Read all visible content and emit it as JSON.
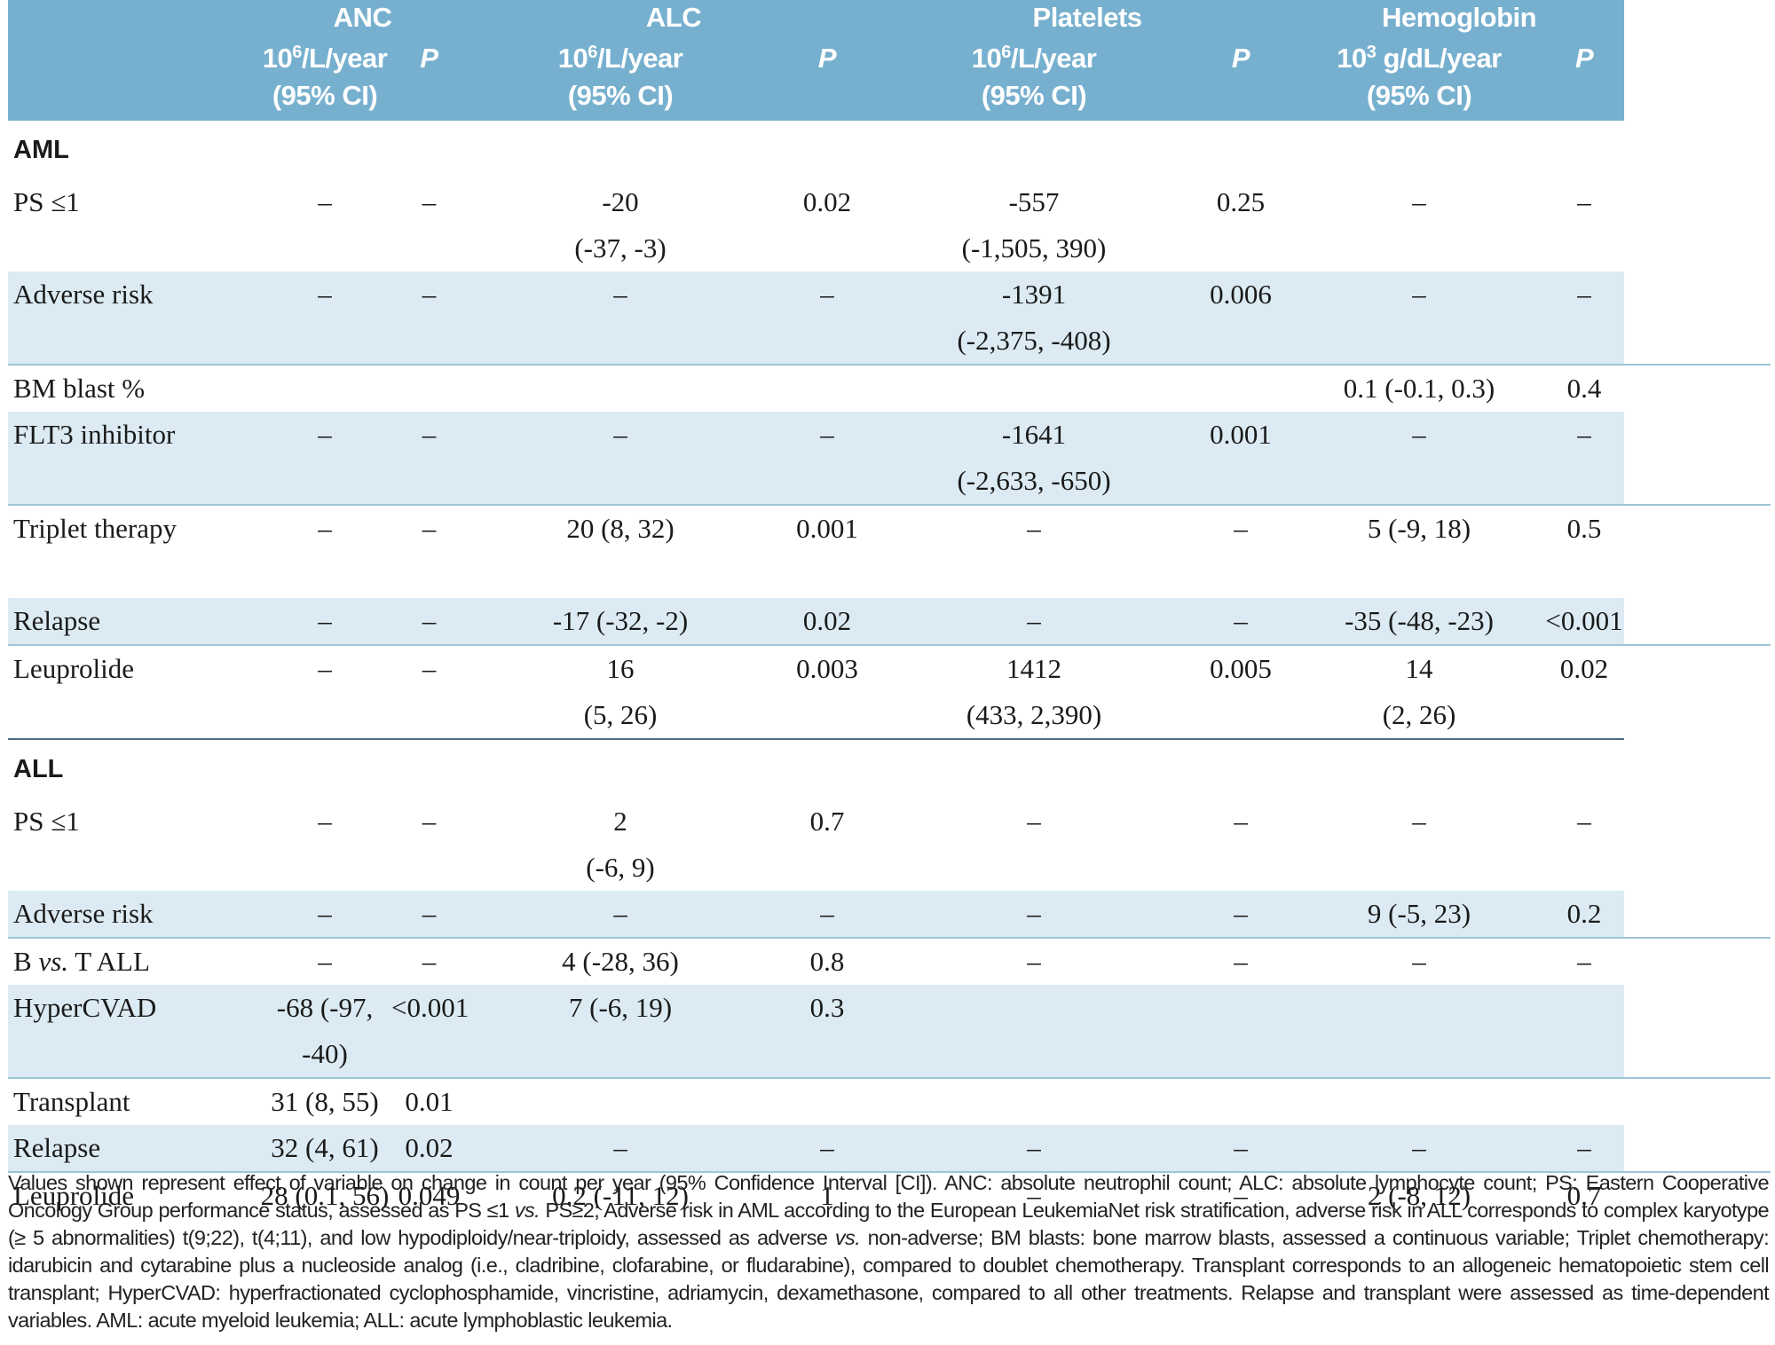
{
  "header": {
    "groups": [
      "ANC",
      "ALC",
      "Platelets",
      "Hemoglobin"
    ],
    "unit_main_a": "10",
    "unit_exp_6": "6",
    "unit_rest_a": "/L/year",
    "unit_exp_3": "3",
    "unit_rest_b": " g/dL/year",
    "ci_label": "(95% CI)",
    "p_label": "P"
  },
  "sections": [
    {
      "title": "AML",
      "rows": [
        {
          "label": "PS ≤1",
          "cells": [
            [
              "–",
              ""
            ],
            [
              "–",
              ""
            ],
            [
              "-20",
              "(-37, -3)"
            ],
            [
              "0.02",
              ""
            ],
            [
              "-557",
              "(-1,505, 390)"
            ],
            [
              "0.25",
              ""
            ],
            [
              "–",
              ""
            ],
            [
              "–",
              ""
            ]
          ]
        },
        {
          "label": "Adverse risk",
          "cells": [
            [
              "–",
              ""
            ],
            [
              "–",
              ""
            ],
            [
              "–",
              ""
            ],
            [
              "–",
              ""
            ],
            [
              "-1391",
              "(-2,375, -408)"
            ],
            [
              "0.006",
              ""
            ],
            [
              "–",
              ""
            ],
            [
              "–",
              ""
            ]
          ]
        },
        {
          "label": "BM blast %",
          "cells": [
            [
              "",
              ""
            ],
            [
              "",
              ""
            ],
            [
              "",
              ""
            ],
            [
              "",
              ""
            ],
            [
              "",
              ""
            ],
            [
              "",
              ""
            ],
            [
              "0.1 (-0.1, 0.3)",
              ""
            ],
            [
              "0.4",
              ""
            ]
          ]
        },
        {
          "label": "FLT3 inhibitor",
          "cells": [
            [
              "–",
              ""
            ],
            [
              "–",
              ""
            ],
            [
              "–",
              ""
            ],
            [
              "–",
              ""
            ],
            [
              "-1641",
              "(-2,633, -650)"
            ],
            [
              "0.001",
              ""
            ],
            [
              "–",
              ""
            ],
            [
              "–",
              ""
            ]
          ]
        },
        {
          "label": "Triplet therapy",
          "cells": [
            [
              "–",
              ""
            ],
            [
              "–",
              ""
            ],
            [
              "20 (8, 32)",
              ""
            ],
            [
              "0.001",
              ""
            ],
            [
              "–",
              ""
            ],
            [
              "–",
              ""
            ],
            [
              "5 (-9, 18)",
              ""
            ],
            [
              "0.5",
              ""
            ]
          ]
        },
        {
          "label": "Relapse",
          "cells": [
            [
              "–",
              ""
            ],
            [
              "–",
              ""
            ],
            [
              "-17 (-32, -2)",
              ""
            ],
            [
              "0.02",
              ""
            ],
            [
              "–",
              ""
            ],
            [
              "–",
              ""
            ],
            [
              "-35 (-48, -23)",
              ""
            ],
            [
              "<0.001",
              ""
            ]
          ]
        },
        {
          "label": "Leuprolide",
          "cells": [
            [
              "–",
              ""
            ],
            [
              "–",
              ""
            ],
            [
              "16",
              "(5, 26)"
            ],
            [
              "0.003",
              ""
            ],
            [
              "1412",
              "(433, 2,390)"
            ],
            [
              "0.005",
              ""
            ],
            [
              "14",
              "(2, 26)"
            ],
            [
              "0.02",
              ""
            ]
          ]
        }
      ]
    },
    {
      "title": "ALL",
      "rows": [
        {
          "label": "PS ≤1",
          "cells": [
            [
              "–",
              ""
            ],
            [
              "–",
              ""
            ],
            [
              "2",
              "(-6, 9)"
            ],
            [
              "0.7",
              ""
            ],
            [
              "–",
              ""
            ],
            [
              "–",
              ""
            ],
            [
              "–",
              ""
            ],
            [
              "–",
              ""
            ]
          ]
        },
        {
          "label": "Adverse risk",
          "cells": [
            [
              "–",
              ""
            ],
            [
              "–",
              ""
            ],
            [
              "–",
              ""
            ],
            [
              "–",
              ""
            ],
            [
              "–",
              ""
            ],
            [
              "–",
              ""
            ],
            [
              "9 (-5, 23)",
              ""
            ],
            [
              "0.2",
              ""
            ]
          ]
        },
        {
          "label_a": "B ",
          "label_em": "vs.",
          "label_b": " T ALL",
          "cells": [
            [
              "–",
              ""
            ],
            [
              "–",
              ""
            ],
            [
              "4 (-28, 36)",
              ""
            ],
            [
              "0.8",
              ""
            ],
            [
              "–",
              ""
            ],
            [
              "–",
              ""
            ],
            [
              "–",
              ""
            ],
            [
              "–",
              ""
            ]
          ]
        },
        {
          "label": "HyperCVAD",
          "cells": [
            [
              "-68 (-97, -40)",
              ""
            ],
            [
              "<0.001",
              ""
            ],
            [
              "7 (-6, 19)",
              ""
            ],
            [
              "0.3",
              ""
            ],
            [
              "",
              ""
            ],
            [
              "",
              ""
            ],
            [
              "",
              ""
            ],
            [
              "",
              ""
            ]
          ]
        },
        {
          "label": "Transplant",
          "cells": [
            [
              "31 (8, 55)",
              ""
            ],
            [
              "0.01",
              ""
            ],
            [
              "",
              ""
            ],
            [
              "",
              ""
            ],
            [
              "",
              ""
            ],
            [
              "",
              ""
            ],
            [
              "",
              ""
            ],
            [
              "",
              ""
            ]
          ]
        },
        {
          "label": "Relapse",
          "cells": [
            [
              "32 (4, 61)",
              ""
            ],
            [
              "0.02",
              ""
            ],
            [
              "–",
              ""
            ],
            [
              "–",
              ""
            ],
            [
              "–",
              ""
            ],
            [
              "–",
              ""
            ],
            [
              "–",
              ""
            ],
            [
              "–",
              ""
            ]
          ]
        },
        {
          "label": "Leuprolide",
          "cells": [
            [
              "28 (0.1, 56)",
              ""
            ],
            [
              "0.049",
              ""
            ],
            [
              "0.2 (-11, 12)",
              ""
            ],
            [
              "1",
              ""
            ],
            [
              "–",
              ""
            ],
            [
              "–",
              ""
            ],
            [
              "2 (-8, 12)",
              ""
            ],
            [
              "0.7",
              ""
            ]
          ]
        }
      ]
    }
  ],
  "footnote": {
    "p1": "Values shown represent effect of variable on change in count per year (95% Confidence Interval [CI]). ANC: absolute neutrophil count; ALC: absolute lymphocyte count; PS: Eastern Cooperative Oncology Group performance status, assessed as PS ≤1 ",
    "em1": "vs.",
    "p2": " PS≥2; Adverse risk in AML according to the European LeukemiaNet risk stratification, adverse risk in ALL corresponds to complex karyotype (≥ 5 abnormalities) t(9;22), t(4;11), and low hypodiploidy/near-triploidy, assessed as adverse ",
    "em2": "vs.",
    "p3": " non-adverse; BM blasts: bone marrow blasts, assessed a continuous variable; Triplet chemotherapy: idarubicin and cytarabine plus a nucleoside analog (i.e., cladribine, clofarabine, or fludarabine), compared to doublet chemotherapy. Transplant corresponds to an allogeneic hematopoietic stem cell transplant; HyperCVAD: hyperfractionated cyclophosphamide, vincristine, adriamycin, dexamethasone, compared to all other treatments. Relapse and transplant were assessed as time-dependent variables. AML: acute myeloid leukemia; ALL: acute lymphoblastic leukemia."
  }
}
